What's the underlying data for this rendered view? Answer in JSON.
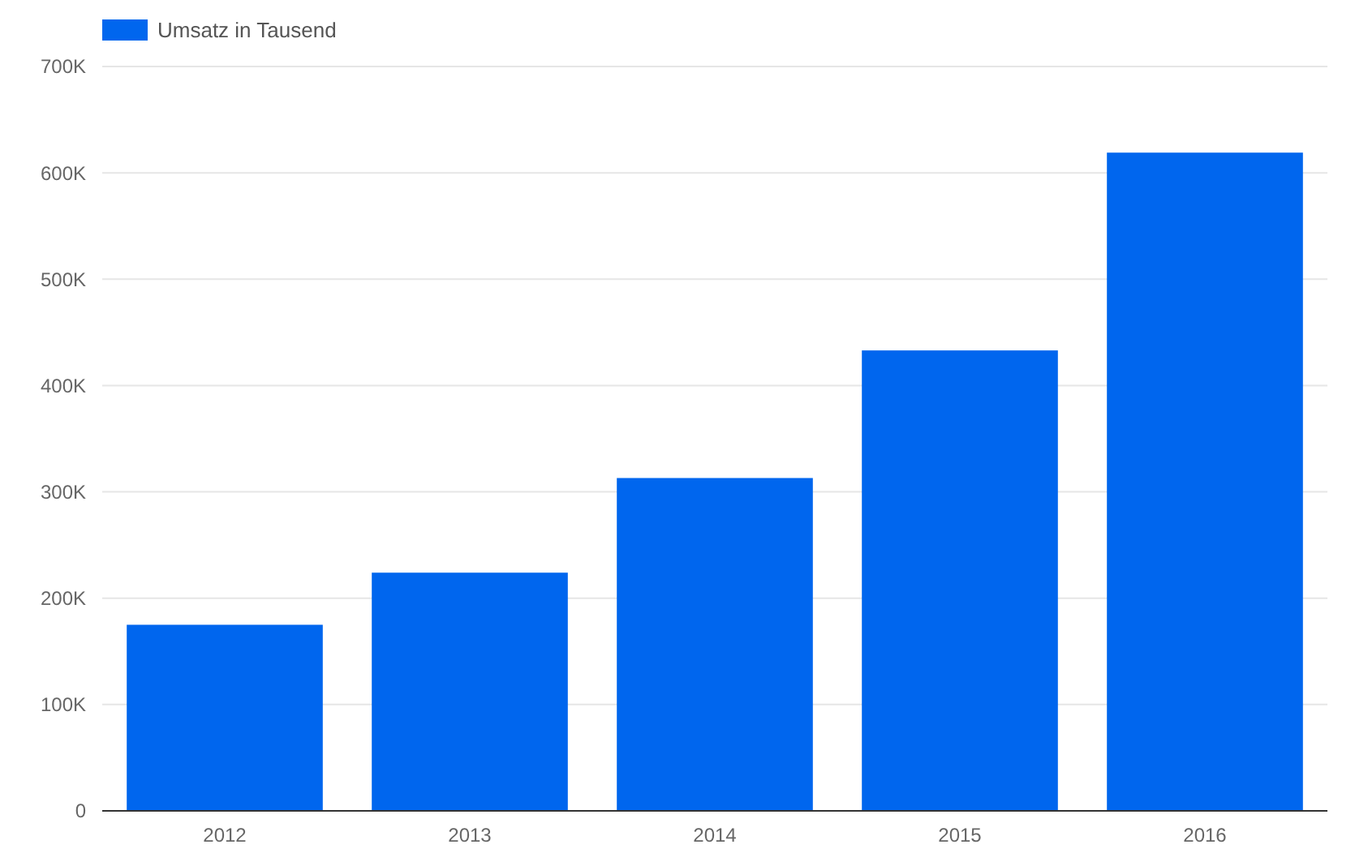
{
  "chart_data": {
    "type": "bar",
    "categories": [
      "2012",
      "2013",
      "2014",
      "2015",
      "2016"
    ],
    "series": [
      {
        "name": "Umsatz in Tausend",
        "color": "#0066ee",
        "values": [
          175000,
          224000,
          313000,
          433000,
          619000
        ]
      }
    ],
    "ylim": [
      0,
      700000
    ],
    "yticks": [
      {
        "value": 0,
        "label": "0"
      },
      {
        "value": 100000,
        "label": "100K"
      },
      {
        "value": 200000,
        "label": "200K"
      },
      {
        "value": 300000,
        "label": "300K"
      },
      {
        "value": 400000,
        "label": "400K"
      },
      {
        "value": 500000,
        "label": "500K"
      },
      {
        "value": 600000,
        "label": "600K"
      },
      {
        "value": 700000,
        "label": "700K"
      }
    ],
    "grid": "y",
    "legend": "top left"
  }
}
